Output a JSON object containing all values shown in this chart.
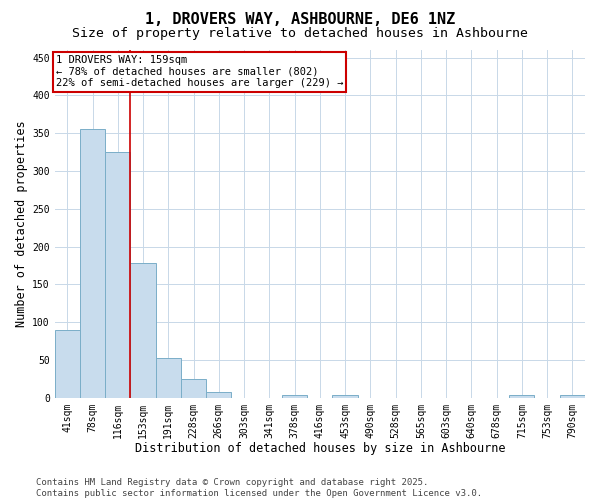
{
  "title": "1, DROVERS WAY, ASHBOURNE, DE6 1NZ",
  "subtitle": "Size of property relative to detached houses in Ashbourne",
  "xlabel": "Distribution of detached houses by size in Ashbourne",
  "ylabel": "Number of detached properties",
  "categories": [
    "41sqm",
    "78sqm",
    "116sqm",
    "153sqm",
    "191sqm",
    "228sqm",
    "266sqm",
    "303sqm",
    "341sqm",
    "378sqm",
    "416sqm",
    "453sqm",
    "490sqm",
    "528sqm",
    "565sqm",
    "603sqm",
    "640sqm",
    "678sqm",
    "715sqm",
    "753sqm",
    "790sqm"
  ],
  "values": [
    90,
    355,
    325,
    178,
    53,
    25,
    8,
    0,
    0,
    3,
    0,
    3,
    0,
    0,
    0,
    0,
    0,
    0,
    3,
    0,
    3
  ],
  "bar_color": "#c8dced",
  "bar_edge_color": "#7aaec8",
  "red_line_x": 2.5,
  "annotation_text": "1 DROVERS WAY: 159sqm\n← 78% of detached houses are smaller (802)\n22% of semi-detached houses are larger (229) →",
  "annotation_box_color": "#ffffff",
  "annotation_box_edge": "#cc0000",
  "red_line_color": "#cc0000",
  "ylim": [
    0,
    460
  ],
  "yticks": [
    0,
    50,
    100,
    150,
    200,
    250,
    300,
    350,
    400,
    450
  ],
  "footer_line1": "Contains HM Land Registry data © Crown copyright and database right 2025.",
  "footer_line2": "Contains public sector information licensed under the Open Government Licence v3.0.",
  "bg_color": "#ffffff",
  "grid_color": "#c8d8e8",
  "title_fontsize": 11,
  "subtitle_fontsize": 9.5,
  "axis_label_fontsize": 8.5,
  "tick_fontsize": 7,
  "footer_fontsize": 6.5,
  "annotation_fontsize": 7.5
}
